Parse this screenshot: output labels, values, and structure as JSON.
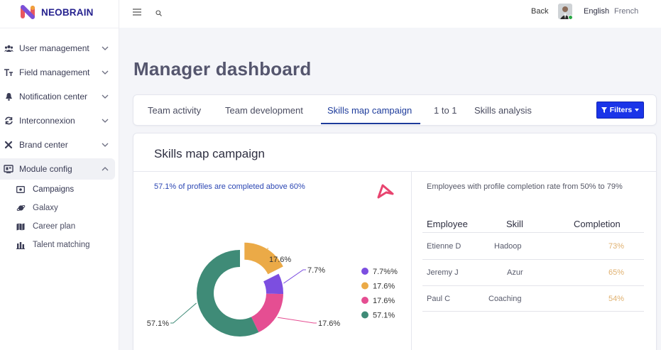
{
  "app": {
    "name": "NEOBRAIN"
  },
  "sidebar": {
    "items": [
      {
        "label": "User management",
        "icon": "users-icon",
        "expanded": false
      },
      {
        "label": "Field management",
        "icon": "text-format-icon",
        "expanded": false
      },
      {
        "label": "Notification center",
        "icon": "bell-icon",
        "expanded": false
      },
      {
        "label": "Interconnexion",
        "icon": "sync-icon",
        "expanded": false
      },
      {
        "label": "Brand center",
        "icon": "tools-icon",
        "expanded": false
      },
      {
        "label": "Module config",
        "icon": "dashboard-icon",
        "expanded": true
      }
    ],
    "subitems": [
      {
        "label": "Campaigns",
        "icon": "campaign-icon"
      },
      {
        "label": "Galaxy",
        "icon": "planet-icon"
      },
      {
        "label": "Career plan",
        "icon": "map-icon"
      },
      {
        "label": "Talent matching",
        "icon": "chart-bars-icon"
      }
    ]
  },
  "topbar": {
    "back": "Back",
    "lang_en": "English",
    "lang_fr": "French"
  },
  "page": {
    "title": "Manager dashboard"
  },
  "tabs": [
    "Team activity",
    "Team development",
    "Skills map campaign",
    "1 to 1",
    "Skills analysis"
  ],
  "filters": {
    "label": "Filters"
  },
  "card": {
    "title": "Skills map campaign",
    "summary": "57.1% of profiles are completed above 60%",
    "right_description": "Employees with profile completion rate from 50% to 79%"
  },
  "chart_data": {
    "type": "pie",
    "donut": true,
    "title": "",
    "slices": [
      {
        "label": "17.6%",
        "value": 17.6,
        "color": "#ebaa47",
        "exploded": true
      },
      {
        "label": "7.7%",
        "value": 7.7,
        "color": "#7c4ee0"
      },
      {
        "label": "17.6%",
        "value": 17.6,
        "color": "#e54e92"
      },
      {
        "label": "57.1%",
        "value": 57.1,
        "color": "#3f8b77"
      }
    ],
    "legend": [
      {
        "label": "7.7%%",
        "color": "#7c4ee0"
      },
      {
        "label": "17.6%",
        "color": "#ebaa47"
      },
      {
        "label": "17.6%",
        "color": "#e54e92"
      },
      {
        "label": "57.1%",
        "color": "#3f8b77"
      }
    ],
    "legend_position": "right"
  },
  "table": {
    "headers": [
      "Employee",
      "Skill",
      "Completion"
    ],
    "rows": [
      [
        "Etienne D",
        "Hadoop",
        "73%"
      ],
      [
        "Jeremy J",
        "Azur",
        "65%"
      ],
      [
        "Paul C",
        "Coaching",
        "54%"
      ]
    ]
  },
  "colors": {
    "brand": "#26228f",
    "accent": "#1a34e8",
    "tab_active": "#1d3b9b",
    "completion": "#e0b170"
  }
}
